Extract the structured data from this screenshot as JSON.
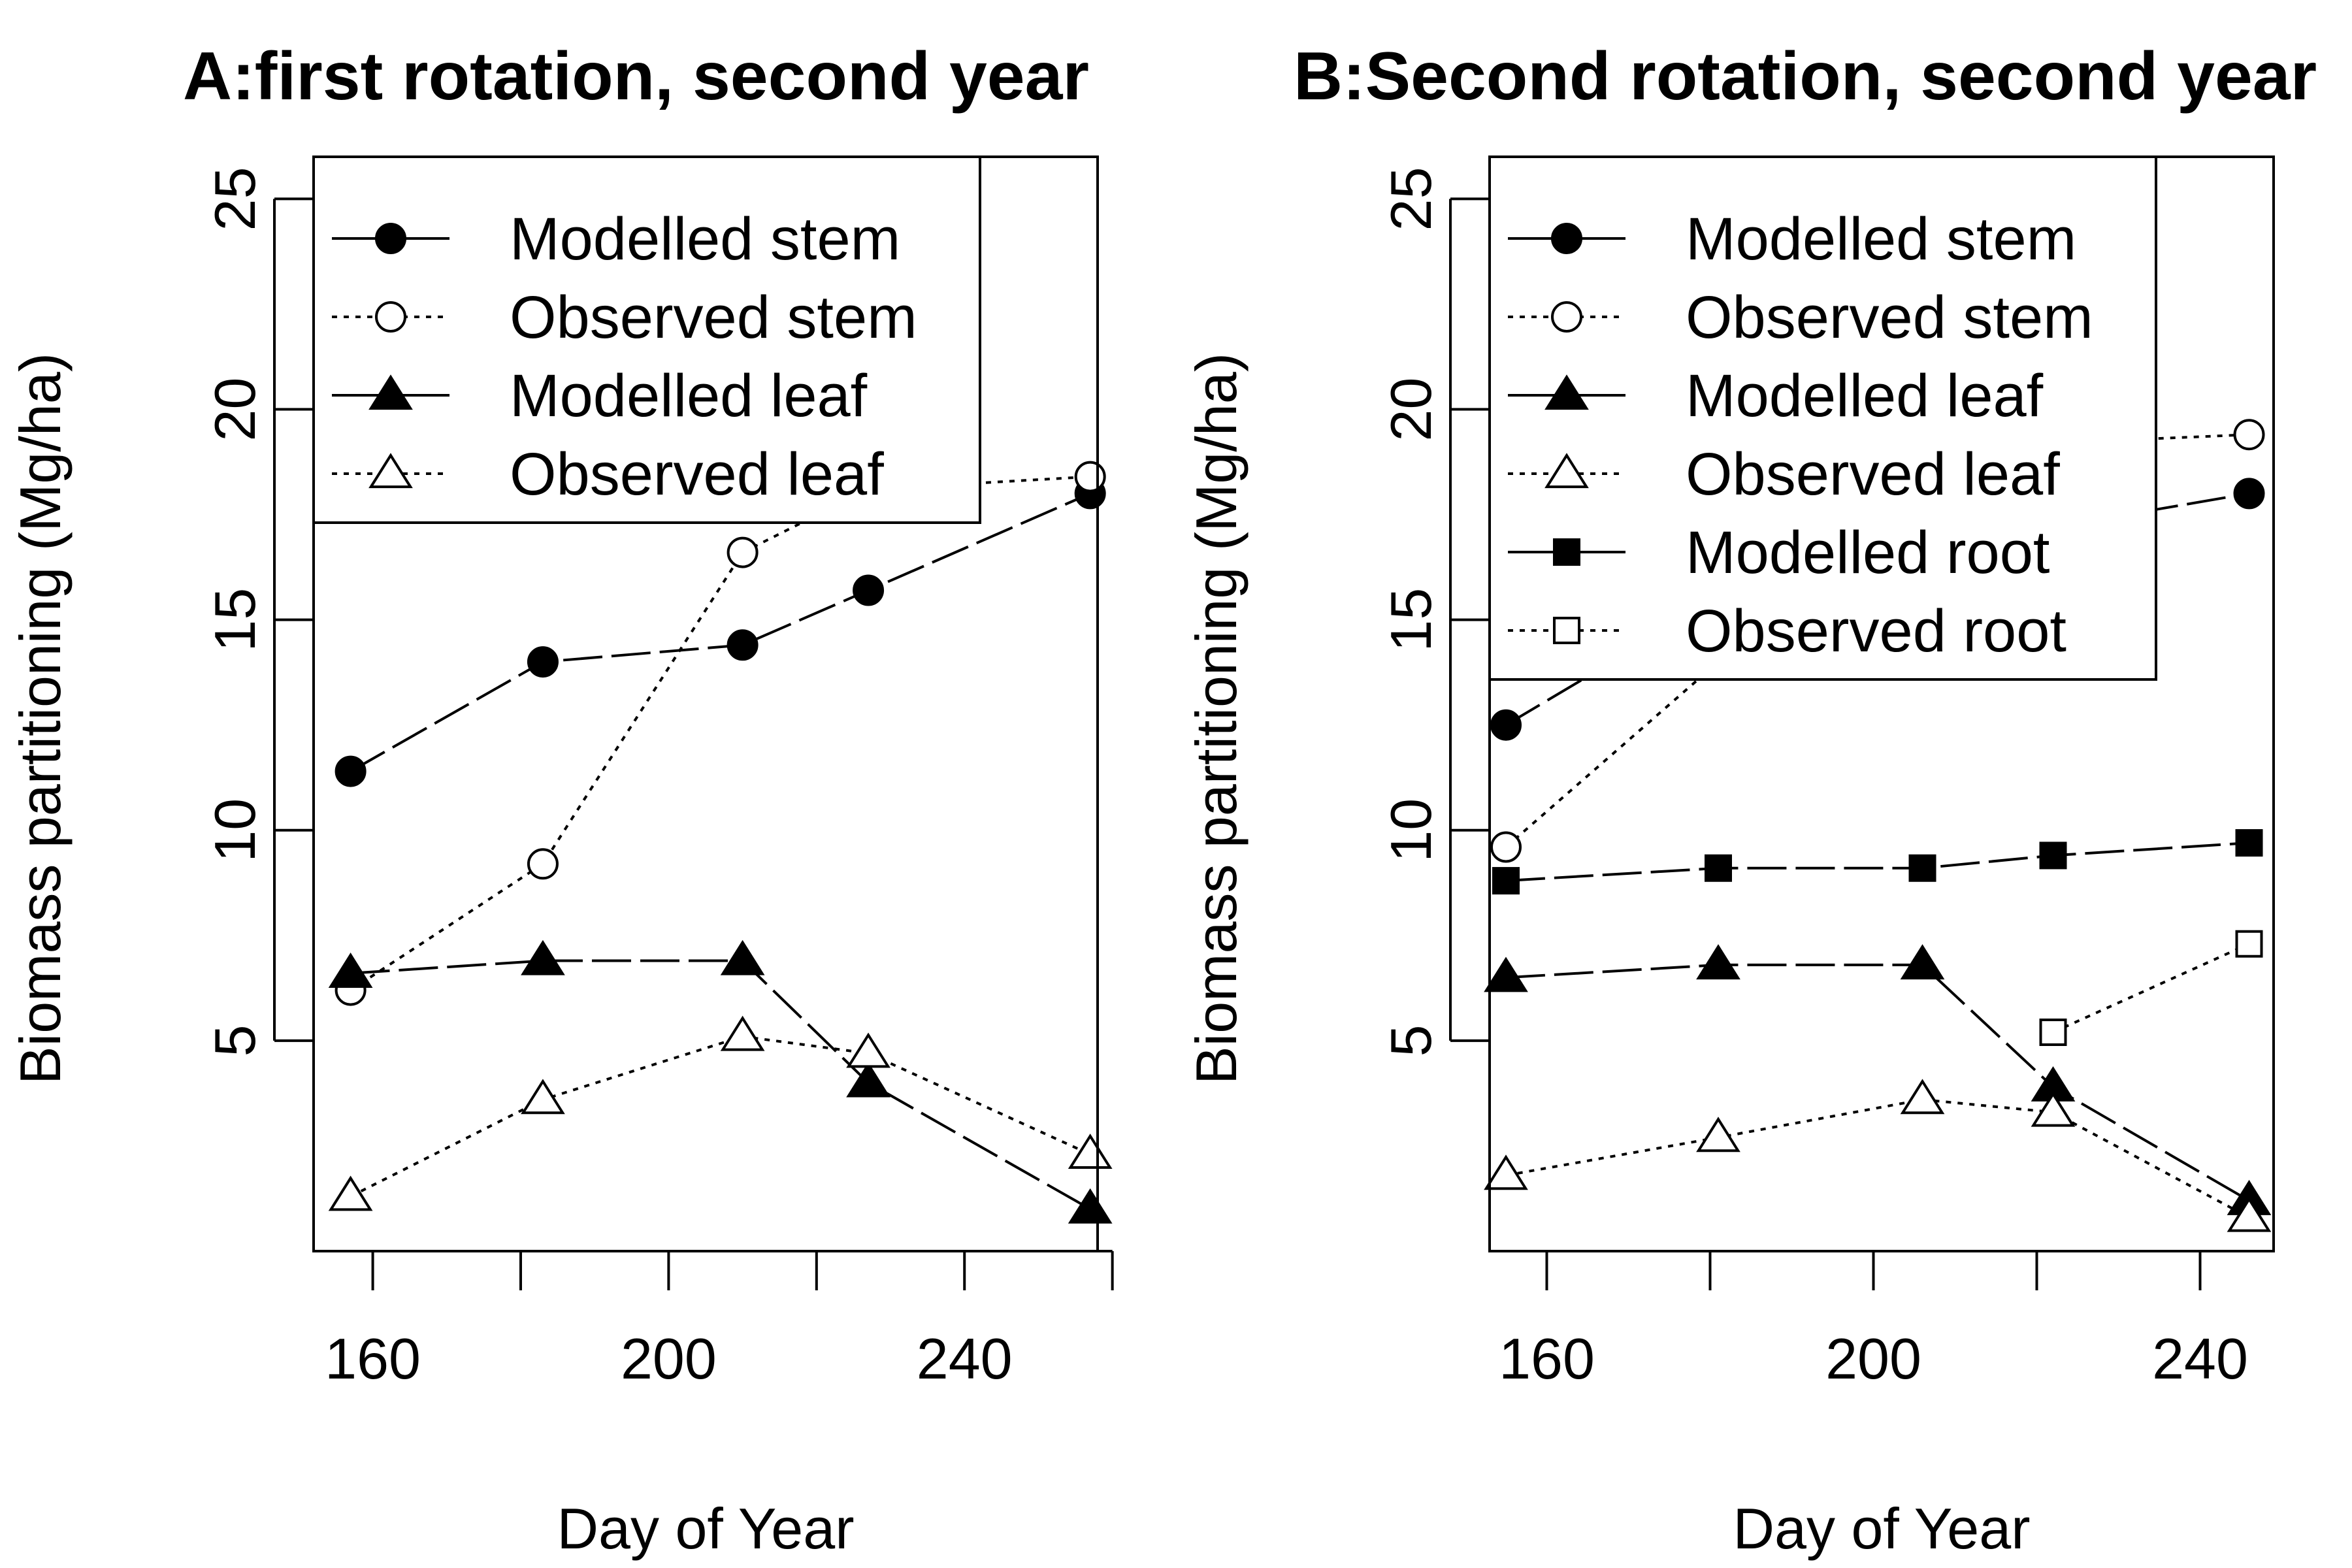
{
  "chart_data": [
    {
      "type": "line",
      "title": "A:first rotation, second year",
      "xlabel": "Day of Year",
      "ylabel": "Biomass partitioning (Mg/ha)",
      "xlim": [
        152,
        258
      ],
      "ylim": [
        0,
        26
      ],
      "xticks": [
        160,
        180,
        200,
        220,
        240,
        260
      ],
      "xtick_labels": [
        "160",
        "",
        "200",
        "",
        "240",
        ""
      ],
      "yticks": [
        5,
        10,
        15,
        20,
        25
      ],
      "ytick_labels": [
        "5",
        "10",
        "15",
        "20",
        "25"
      ],
      "legend_position": "top-left",
      "series": [
        {
          "name": "Modelled stem",
          "marker": "circle-filled",
          "line": "solid",
          "x": [
            157,
            183,
            210,
            227,
            257
          ],
          "y": [
            11.4,
            14.0,
            14.4,
            15.7,
            18.0
          ]
        },
        {
          "name": "Observed stem",
          "marker": "circle-open",
          "line": "dotted",
          "x": [
            157,
            183,
            210,
            227,
            257
          ],
          "y": [
            6.2,
            9.2,
            16.6,
            18.1,
            18.4
          ]
        },
        {
          "name": "Modelled leaf",
          "marker": "triangle-filled",
          "line": "solid",
          "x": [
            157,
            183,
            210,
            227,
            257
          ],
          "y": [
            6.6,
            6.9,
            6.9,
            4.0,
            1.0
          ]
        },
        {
          "name": "Observed leaf",
          "marker": "triangle-open",
          "line": "dotted",
          "x": [
            157,
            183,
            210,
            227,
            257
          ],
          "y": [
            1.3,
            3.6,
            5.1,
            4.7,
            2.3
          ]
        }
      ]
    },
    {
      "type": "line",
      "title": "B:Second rotation, second year",
      "xlabel": "Day of Year",
      "ylabel": "Biomass partitioning (Mg/ha)",
      "xlim": [
        153,
        249
      ],
      "ylim": [
        0,
        26
      ],
      "xticks": [
        160,
        180,
        200,
        220,
        240
      ],
      "xtick_labels": [
        "160",
        "",
        "200",
        "",
        "240"
      ],
      "yticks": [
        5,
        10,
        15,
        20,
        25
      ],
      "ytick_labels": [
        "5",
        "10",
        "15",
        "20",
        "25"
      ],
      "legend_position": "top-left",
      "series": [
        {
          "name": "Modelled stem",
          "marker": "circle-filled",
          "line": "solid",
          "x": [
            155,
            181,
            206,
            222,
            246
          ],
          "y": [
            12.5,
            15.5,
            16.5,
            17.2,
            18.0
          ]
        },
        {
          "name": "Observed stem",
          "marker": "circle-open",
          "line": "dotted",
          "x": [
            155,
            181,
            206,
            222,
            246
          ],
          "y": [
            9.6,
            14.0,
            17.5,
            19.2,
            19.4
          ]
        },
        {
          "name": "Modelled leaf",
          "marker": "triangle-filled",
          "line": "solid",
          "x": [
            155,
            181,
            206,
            222,
            246
          ],
          "y": [
            6.5,
            6.8,
            6.8,
            3.9,
            1.2
          ]
        },
        {
          "name": "Observed leaf",
          "marker": "triangle-open",
          "line": "dotted",
          "x": [
            155,
            181,
            206,
            222,
            246
          ],
          "y": [
            1.8,
            2.7,
            3.6,
            3.3,
            0.8
          ]
        },
        {
          "name": "Modelled root",
          "marker": "square-filled",
          "line": "solid",
          "x": [
            155,
            181,
            206,
            222,
            246
          ],
          "y": [
            8.8,
            9.1,
            9.1,
            9.4,
            9.7
          ]
        },
        {
          "name": "Observed root",
          "marker": "square-open",
          "line": "dotted",
          "x": [
            222,
            246
          ],
          "y": [
            5.2,
            7.3
          ]
        }
      ]
    }
  ]
}
